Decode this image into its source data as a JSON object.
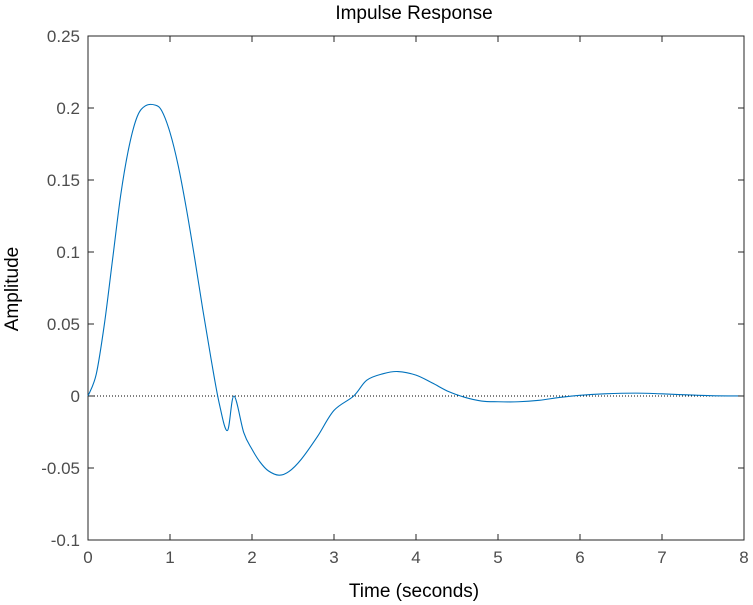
{
  "chart_data": {
    "type": "line",
    "title": "Impulse Response",
    "xlabel": "Time (seconds)",
    "ylabel": "Amplitude",
    "xlim": [
      0,
      8
    ],
    "ylim": [
      -0.1,
      0.25
    ],
    "x_ticks": [
      0,
      1,
      2,
      3,
      4,
      5,
      6,
      7,
      8
    ],
    "x_tick_labels": [
      "0",
      "1",
      "2",
      "3",
      "4",
      "5",
      "6",
      "7",
      "8"
    ],
    "y_ticks": [
      -0.1,
      -0.05,
      0,
      0.05,
      0.1,
      0.15,
      0.2,
      0.25
    ],
    "y_tick_labels": [
      "-0.1",
      "-0.05",
      "0",
      "0.05",
      "0.1",
      "0.15",
      "0.2",
      "0.25"
    ],
    "grid": false,
    "legend": "none",
    "reference_line": {
      "y": 0,
      "style": "dotted",
      "color": "#000000"
    },
    "series": [
      {
        "color": "#0072bd",
        "x": [
          0,
          0.1,
          0.2,
          0.3,
          0.4,
          0.5,
          0.6,
          0.7,
          0.82,
          0.9,
          1.0,
          1.1,
          1.2,
          1.3,
          1.4,
          1.5,
          1.6,
          1.7,
          1.78,
          1.9,
          2.0,
          2.1,
          2.2,
          2.33,
          2.45,
          2.6,
          2.8,
          3.0,
          3.24,
          3.4,
          3.6,
          3.78,
          4.0,
          4.2,
          4.4,
          4.6,
          4.8,
          5.0,
          5.25,
          5.5,
          5.75,
          6.0,
          6.3,
          6.68,
          7.0,
          7.3,
          7.6,
          8.0
        ],
        "y": [
          0,
          0.015,
          0.05,
          0.095,
          0.14,
          0.173,
          0.194,
          0.2015,
          0.202,
          0.198,
          0.183,
          0.16,
          0.13,
          0.096,
          0.06,
          0.026,
          -0.005,
          -0.024,
          0.0,
          -0.0255,
          -0.037,
          -0.046,
          -0.052,
          -0.055,
          -0.0525,
          -0.044,
          -0.028,
          -0.01,
          0.0,
          0.011,
          0.0155,
          0.017,
          0.0145,
          0.009,
          0.003,
          -0.001,
          -0.0035,
          -0.004,
          -0.004,
          -0.003,
          -0.001,
          0.0005,
          0.0015,
          0.002,
          0.0015,
          0.0008,
          0.0002,
          0.0
        ]
      }
    ]
  }
}
